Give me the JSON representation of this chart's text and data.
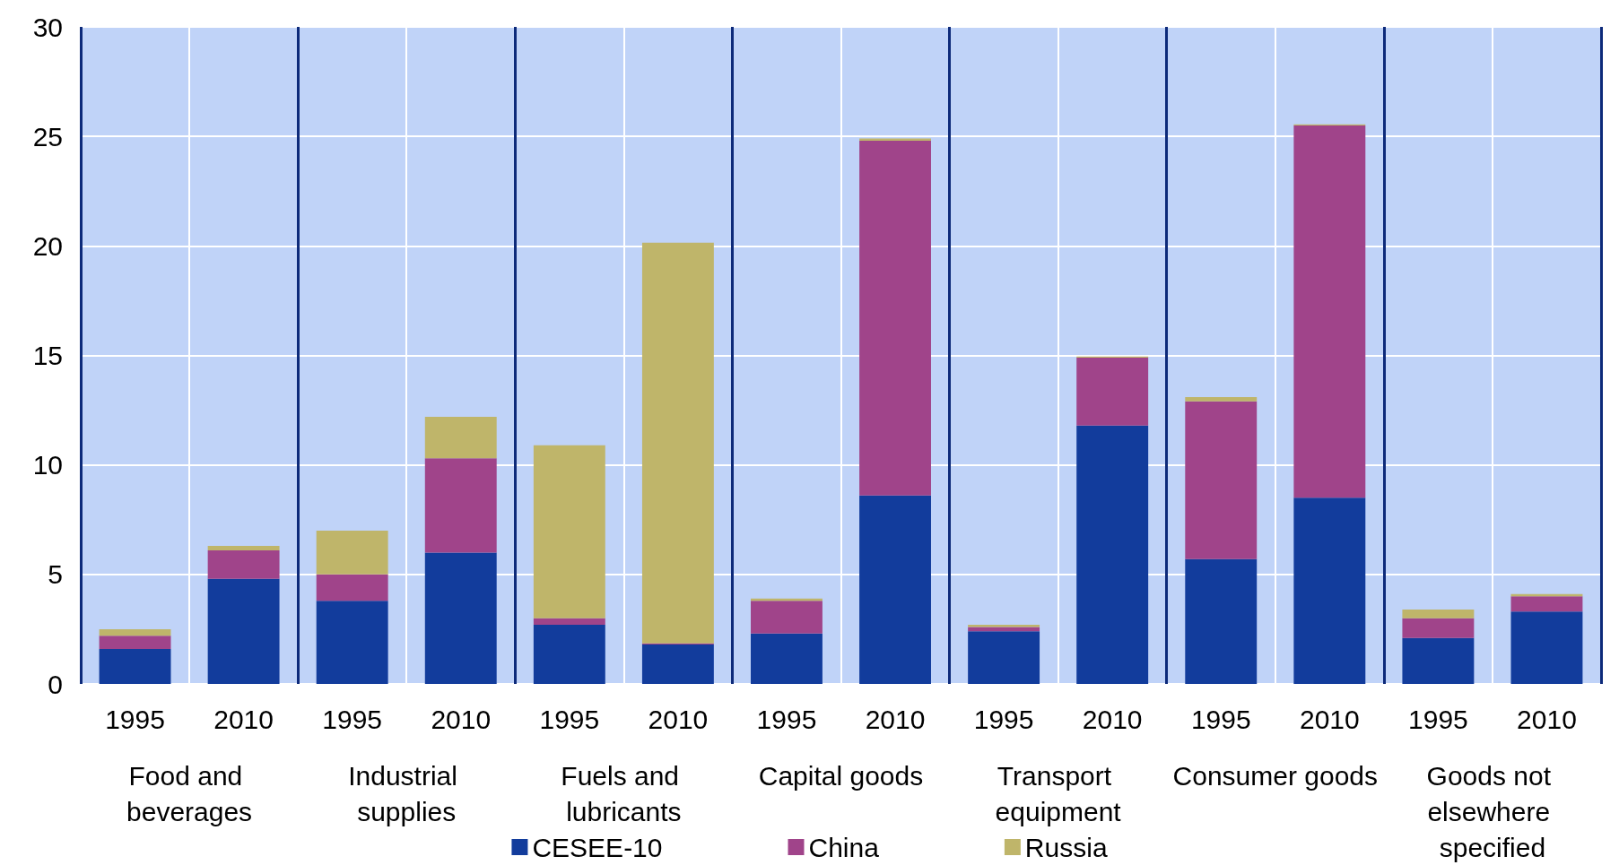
{
  "chart_data": {
    "type": "bar",
    "stacked": true,
    "categories": [
      "1995",
      "2010",
      "1995",
      "2010",
      "1995",
      "2010",
      "1995",
      "2010",
      "1995",
      "2010",
      "1995",
      "2010",
      "1995",
      "2010"
    ],
    "annotations": [
      "Food and beverages",
      "Industrial supplies",
      "Fuels and lubricants",
      "Capital goods",
      "Transport equipment",
      "Consumer goods",
      "Goods not elsewhere specified"
    ],
    "series": [
      {
        "name": "CESEE-10",
        "color": "#123c9c",
        "values": [
          1.6,
          4.8,
          3.8,
          6.0,
          2.7,
          1.8,
          2.3,
          8.6,
          2.4,
          11.8,
          5.7,
          8.5,
          2.1,
          3.3
        ]
      },
      {
        "name": "China",
        "color": "#a0448a",
        "values": [
          0.6,
          1.3,
          1.2,
          4.3,
          0.3,
          0.05,
          1.5,
          16.2,
          0.2,
          3.1,
          7.2,
          17.0,
          0.9,
          0.7
        ]
      },
      {
        "name": "Russia",
        "color": "#bfb56a",
        "values": [
          0.3,
          0.2,
          2.0,
          1.9,
          7.9,
          18.3,
          0.1,
          0.1,
          0.1,
          0.05,
          0.2,
          0.05,
          0.4,
          0.1
        ]
      }
    ],
    "ylim": [
      0,
      30
    ],
    "yticks": [
      0,
      5,
      10,
      15,
      20,
      25,
      30
    ],
    "grid": true,
    "legend": "bottom"
  }
}
